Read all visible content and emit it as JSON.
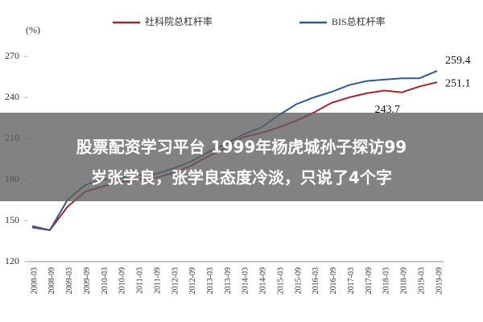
{
  "chart_data": {
    "type": "line",
    "y_axis_label": "(%)",
    "categories": [
      "2008-03",
      "2008-09",
      "2009-03",
      "2009-09",
      "2010-03",
      "2010-09",
      "2011-03",
      "2011-09",
      "2012-03",
      "2012-09",
      "2013-03",
      "2013-09",
      "2014-03",
      "2014-09",
      "2015-03",
      "2015-09",
      "2016-03",
      "2016-09",
      "2017-03",
      "2017-09",
      "2018-03",
      "2018-09",
      "2019-03",
      "2019-09"
    ],
    "series": [
      {
        "name": "社科院总杠杆率",
        "color": "#a3262e",
        "values": [
          145,
          143,
          160,
          171,
          175,
          178,
          180,
          181,
          185,
          190,
          197,
          203,
          211,
          214,
          218,
          223,
          229,
          236,
          240,
          243,
          245,
          243.7,
          248,
          251.1
        ],
        "value_labels": [
          null,
          null,
          null,
          null,
          null,
          null,
          null,
          null,
          null,
          null,
          null,
          null,
          null,
          null,
          null,
          null,
          null,
          null,
          null,
          null,
          null,
          "243.7",
          null,
          "251.1"
        ]
      },
      {
        "name": "BIS总杠杆率",
        "color": "#2f5b8f",
        "values": [
          146,
          143,
          165,
          176,
          180,
          181,
          183,
          184,
          188,
          193,
          200,
          206,
          213,
          218,
          227,
          235,
          240,
          244,
          249,
          252,
          253,
          254,
          254,
          259.4
        ],
        "value_labels": [
          null,
          null,
          null,
          null,
          null,
          null,
          null,
          null,
          null,
          null,
          null,
          null,
          null,
          null,
          null,
          null,
          null,
          null,
          null,
          null,
          null,
          null,
          null,
          "259.4"
        ]
      }
    ],
    "ylim": [
      120,
      270
    ],
    "yticks": [
      120,
      150,
      180,
      210,
      240,
      270
    ],
    "grid": false,
    "overlay": {
      "lines": [
        "股票配资学习平台 1999年杨虎城孙子探访99",
        "岁张学良，张学良态度冷淡，只说了4个字"
      ]
    }
  }
}
